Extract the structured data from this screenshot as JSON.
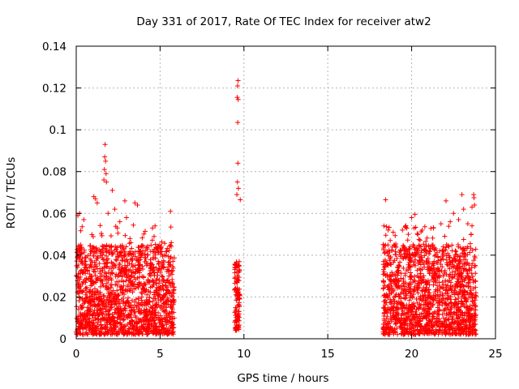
{
  "chart_data": {
    "type": "scatter",
    "title": "Day 331 of 2017, Rate Of TEC Index for receiver atw2",
    "xlabel": "GPS time / hours",
    "ylabel": "ROTI / TECUs",
    "xlim": [
      0,
      25
    ],
    "ylim": [
      0,
      0.14
    ],
    "xticks": [
      0,
      5,
      10,
      15,
      20,
      25
    ],
    "yticks": [
      0,
      0.02,
      0.04,
      0.06,
      0.08,
      0.1,
      0.12,
      0.14
    ],
    "xtick_labels": [
      "0",
      "5",
      "10",
      "15",
      "20",
      "25"
    ],
    "ytick_labels": [
      "0",
      "0.02",
      "0.04",
      "0.06",
      "0.08",
      "0.1",
      "0.12",
      "0.14"
    ],
    "grid": true,
    "marker": "plus",
    "color": "#ff0000",
    "clusters": [
      {
        "x_range": [
          0.0,
          5.85
        ],
        "y_base": [
          0.002,
          0.045
        ],
        "y_upper_envelope": 0.055
      },
      {
        "x_range": [
          9.45,
          9.75
        ],
        "y_base": [
          0.004,
          0.038
        ],
        "y_upper_envelope": 0.038
      },
      {
        "x_range": [
          18.3,
          23.85
        ],
        "y_base": [
          0.002,
          0.045
        ],
        "y_upper_envelope": 0.055
      }
    ],
    "series": [
      {
        "values": [
          [
            1.72,
            0.093
          ],
          [
            1.7,
            0.087
          ],
          [
            1.75,
            0.085
          ],
          [
            1.68,
            0.081
          ],
          [
            1.78,
            0.079
          ],
          [
            1.65,
            0.076
          ],
          [
            1.8,
            0.075
          ],
          [
            2.15,
            0.071
          ],
          [
            1.05,
            0.068
          ],
          [
            1.15,
            0.067
          ],
          [
            1.25,
            0.065
          ],
          [
            2.9,
            0.066
          ],
          [
            3.5,
            0.065
          ],
          [
            3.65,
            0.064
          ],
          [
            2.3,
            0.062
          ],
          [
            0.2,
            0.06
          ],
          [
            0.1,
            0.059
          ],
          [
            5.62,
            0.061
          ],
          [
            1.9,
            0.06
          ],
          [
            0.45,
            0.057
          ],
          [
            3.0,
            0.058
          ],
          [
            2.6,
            0.056
          ],
          [
            4.7,
            0.054
          ],
          [
            4.55,
            0.053
          ],
          [
            2.45,
            0.053
          ],
          [
            9.65,
            0.1235
          ],
          [
            9.62,
            0.121
          ],
          [
            9.6,
            0.1155
          ],
          [
            9.66,
            0.1145
          ],
          [
            9.63,
            0.1035
          ],
          [
            9.64,
            0.084
          ],
          [
            9.61,
            0.075
          ],
          [
            9.67,
            0.072
          ],
          [
            9.58,
            0.069
          ],
          [
            9.78,
            0.0665
          ],
          [
            18.45,
            0.0665
          ],
          [
            23.0,
            0.069
          ],
          [
            23.7,
            0.069
          ],
          [
            23.72,
            0.0675
          ],
          [
            22.05,
            0.066
          ],
          [
            23.75,
            0.064
          ],
          [
            23.6,
            0.063
          ],
          [
            23.1,
            0.062
          ],
          [
            22.5,
            0.06
          ],
          [
            20.2,
            0.0595
          ],
          [
            20.0,
            0.058
          ],
          [
            22.8,
            0.057
          ],
          [
            22.3,
            0.056
          ],
          [
            21.75,
            0.055
          ],
          [
            18.35,
            0.054
          ],
          [
            23.35,
            0.055
          ],
          [
            20.15,
            0.053
          ],
          [
            21.3,
            0.053
          ],
          [
            18.6,
            0.052
          ],
          [
            19.45,
            0.052
          ],
          [
            18.9,
            0.051
          ],
          [
            19.8,
            0.05
          ],
          [
            23.55,
            0.05
          ]
        ]
      }
    ]
  }
}
